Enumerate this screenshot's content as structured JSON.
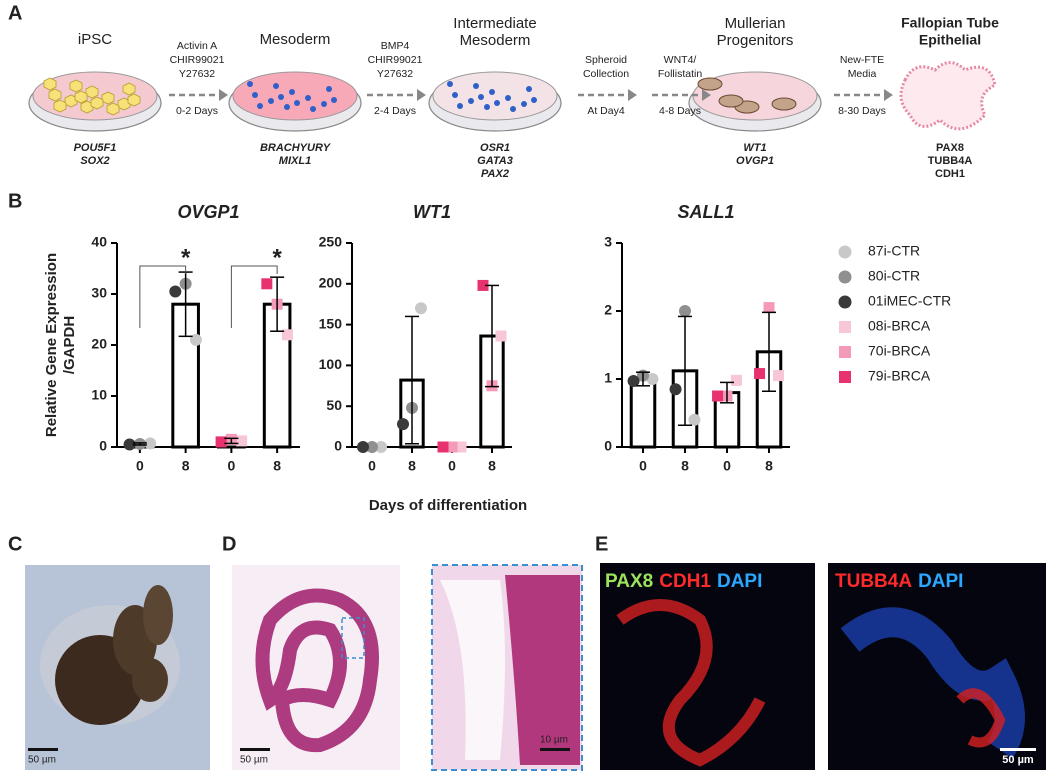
{
  "panel_labels": [
    "A",
    "B",
    "C",
    "D",
    "E"
  ],
  "panel_a": {
    "stages": [
      {
        "name": [
          "iPSC"
        ],
        "markers": [
          "POU5F1",
          "SOX2"
        ]
      },
      {
        "name": [
          "Mesoderm"
        ],
        "markers": [
          "BRACHYURY",
          "MIXL1"
        ]
      },
      {
        "name": [
          "Intermediate",
          "Mesoderm"
        ],
        "markers": [
          "OSR1",
          "GATA3",
          "PAX2"
        ]
      },
      {
        "name": [
          "Mullerian",
          "Progenitors"
        ],
        "markers": [
          "WT1",
          "OVGP1"
        ]
      },
      {
        "name": [
          "Fallopian Tube",
          "Epithelial"
        ],
        "markers": [
          "PAX8",
          "TUBB4A",
          "CDH1"
        ]
      }
    ],
    "steps": [
      {
        "factors": [
          "Activin A",
          "CHIR99021",
          "Y27632"
        ],
        "time": "0-2 Days"
      },
      {
        "factors": [
          "BMP4",
          "CHIR99021",
          "Y27632"
        ],
        "time": "2-4 Days"
      },
      {
        "factors": [
          "Spheroid",
          "Collection"
        ],
        "time": "At Day4"
      },
      {
        "factors": [
          "WNT4/",
          "Follistatin"
        ],
        "time": "4-8 Days"
      },
      {
        "factors": [
          "New-FTE",
          "Media"
        ],
        "time": "8-30 Days"
      }
    ]
  },
  "y_label": [
    "Relative Gene Expression",
    "/GAPDH"
  ],
  "x_label": "Days of differentiation",
  "chart_data": [
    {
      "type": "bar",
      "title": "OVGP1",
      "categories": [
        "0",
        "8",
        "0",
        "8"
      ],
      "values": [
        0.6,
        28,
        1.2,
        28
      ],
      "errors": [
        0.2,
        6.3,
        0.5,
        5.3
      ],
      "ylim": [
        0,
        40
      ],
      "yticks": [
        0,
        10,
        20,
        30,
        40
      ],
      "significance": [
        "*",
        "*"
      ],
      "series": [
        {
          "name": "87i-CTR",
          "color": "#c8c8c8",
          "marker": "circle",
          "values": [
            0.7,
            21,
            null,
            null
          ]
        },
        {
          "name": "80i-CTR",
          "color": "#8f8f8f",
          "marker": "circle",
          "values": [
            0.6,
            32,
            null,
            null
          ]
        },
        {
          "name": "01iMEC-CTR",
          "color": "#3a3a3a",
          "marker": "circle",
          "values": [
            0.5,
            30.5,
            null,
            null
          ]
        },
        {
          "name": "08i-BRCA",
          "color": "#f7c6d9",
          "marker": "square",
          "values": [
            null,
            null,
            1.2,
            22
          ]
        },
        {
          "name": "70i-BRCA",
          "color": "#f49ab8",
          "marker": "square",
          "values": [
            null,
            null,
            1.5,
            28
          ]
        },
        {
          "name": "79i-BRCA",
          "color": "#e8326f",
          "marker": "square",
          "values": [
            null,
            null,
            1.0,
            32
          ]
        }
      ]
    },
    {
      "type": "bar",
      "title": "WT1",
      "categories": [
        "0",
        "8",
        "0",
        "8"
      ],
      "values": [
        0,
        82,
        0,
        136
      ],
      "errors": [
        0,
        78,
        0,
        62
      ],
      "ylim": [
        0,
        250
      ],
      "yticks": [
        0,
        50,
        100,
        150,
        200,
        250
      ],
      "series": [
        {
          "name": "87i-CTR",
          "color": "#c8c8c8",
          "marker": "circle",
          "values": [
            0,
            170,
            null,
            null
          ]
        },
        {
          "name": "80i-CTR",
          "color": "#8f8f8f",
          "marker": "circle",
          "values": [
            0,
            48,
            null,
            null
          ]
        },
        {
          "name": "01iMEC-CTR",
          "color": "#3a3a3a",
          "marker": "circle",
          "values": [
            0,
            28,
            null,
            null
          ]
        },
        {
          "name": "08i-BRCA",
          "color": "#f7c6d9",
          "marker": "square",
          "values": [
            null,
            null,
            0,
            136
          ]
        },
        {
          "name": "70i-BRCA",
          "color": "#f49ab8",
          "marker": "square",
          "values": [
            null,
            null,
            0,
            75
          ]
        },
        {
          "name": "79i-BRCA",
          "color": "#e8326f",
          "marker": "square",
          "values": [
            null,
            null,
            0,
            198
          ]
        }
      ]
    },
    {
      "type": "bar",
      "title": "SALL1",
      "categories": [
        "0",
        "8",
        "0",
        "8"
      ],
      "values": [
        1.0,
        1.12,
        0.8,
        1.4
      ],
      "errors": [
        0.1,
        0.8,
        0.15,
        0.58
      ],
      "ylim": [
        0,
        3
      ],
      "yticks": [
        0,
        1,
        2,
        3
      ],
      "series": [
        {
          "name": "87i-CTR",
          "color": "#c8c8c8",
          "marker": "circle",
          "values": [
            1.0,
            0.4,
            null,
            null
          ]
        },
        {
          "name": "80i-CTR",
          "color": "#8f8f8f",
          "marker": "circle",
          "values": [
            1.05,
            2.0,
            null,
            null
          ]
        },
        {
          "name": "01iMEC-CTR",
          "color": "#3a3a3a",
          "marker": "circle",
          "values": [
            0.97,
            0.85,
            null,
            null
          ]
        },
        {
          "name": "08i-BRCA",
          "color": "#f7c6d9",
          "marker": "square",
          "values": [
            null,
            null,
            0.98,
            1.05
          ]
        },
        {
          "name": "70i-BRCA",
          "color": "#f49ab8",
          "marker": "square",
          "values": [
            null,
            null,
            0.75,
            2.05
          ]
        },
        {
          "name": "79i-BRCA",
          "color": "#e8326f",
          "marker": "square",
          "values": [
            null,
            null,
            0.75,
            1.08
          ]
        }
      ]
    }
  ],
  "panel_c": {
    "scale_bar": "50 µm"
  },
  "panel_d": {
    "scale_bars": [
      "50 µm",
      "10 µm"
    ]
  },
  "panel_e": {
    "images": [
      {
        "stains": [
          {
            "text": "PAX8",
            "color": "#9be35a"
          },
          {
            "text": "CDH1",
            "color": "#ff2a2a"
          },
          {
            "text": "DAPI",
            "color": "#2aa8ff"
          }
        ]
      },
      {
        "stains": [
          {
            "text": "TUBB4A",
            "color": "#ff2a2a"
          },
          {
            "text": "DAPI",
            "color": "#2aa8ff"
          }
        ]
      }
    ],
    "scale_bar": "50 µm"
  }
}
